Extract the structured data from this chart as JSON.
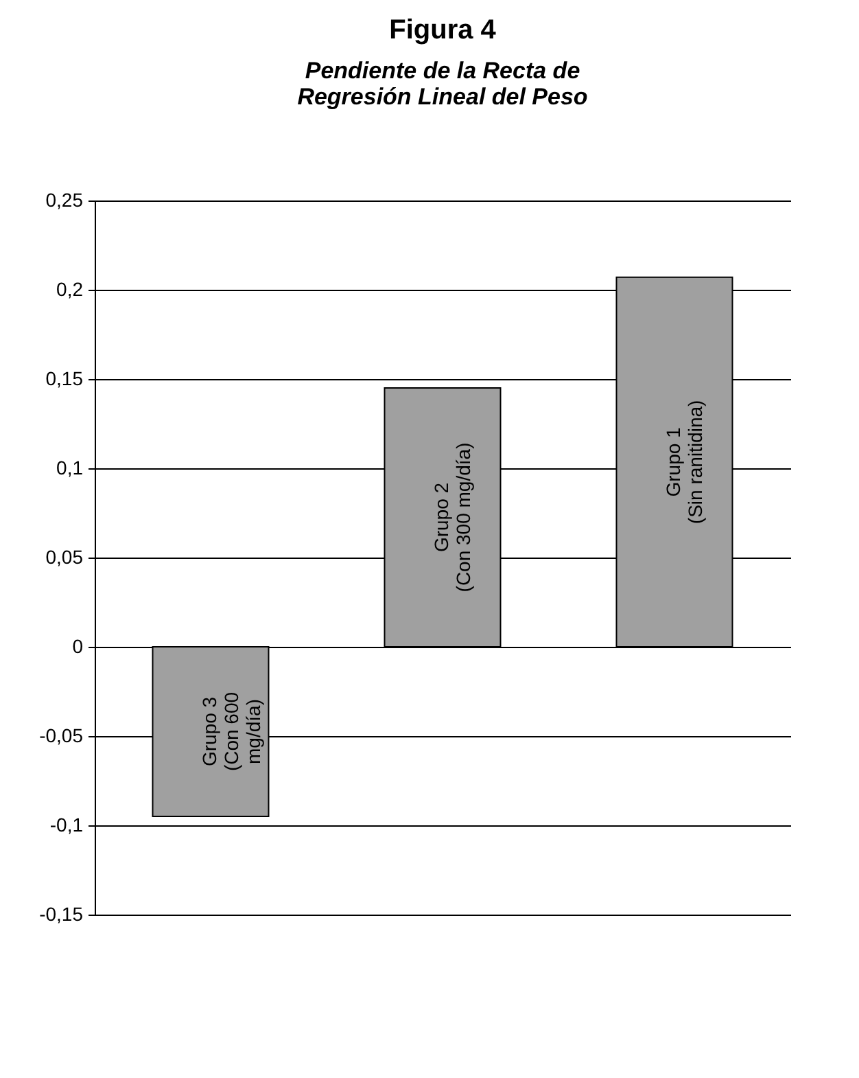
{
  "chart_data": {
    "type": "bar",
    "title": "Figura 4",
    "subtitle": "Pendiente de la Recta de\nRegresión Lineal del Peso",
    "categories": [
      "Grupo 3\n(Con 600\nmg/día)",
      "Grupo 2\n(Con 300 mg/día)",
      "Grupo 1\n(Sin ranitidina)"
    ],
    "values": [
      -0.095,
      0.145,
      0.207
    ],
    "color": "#a0a0a0",
    "ylim": [
      -0.15,
      0.25
    ],
    "yticks": [
      {
        "value": -0.15,
        "label": "-0,15"
      },
      {
        "value": -0.1,
        "label": "-0,1"
      },
      {
        "value": -0.05,
        "label": "-0,05"
      },
      {
        "value": 0,
        "label": "0"
      },
      {
        "value": 0.05,
        "label": "0,05"
      },
      {
        "value": 0.1,
        "label": "0,1"
      },
      {
        "value": 0.15,
        "label": "0,15"
      },
      {
        "value": 0.2,
        "label": "0,2"
      },
      {
        "value": 0.25,
        "label": "0,25"
      }
    ],
    "grid": "y"
  }
}
